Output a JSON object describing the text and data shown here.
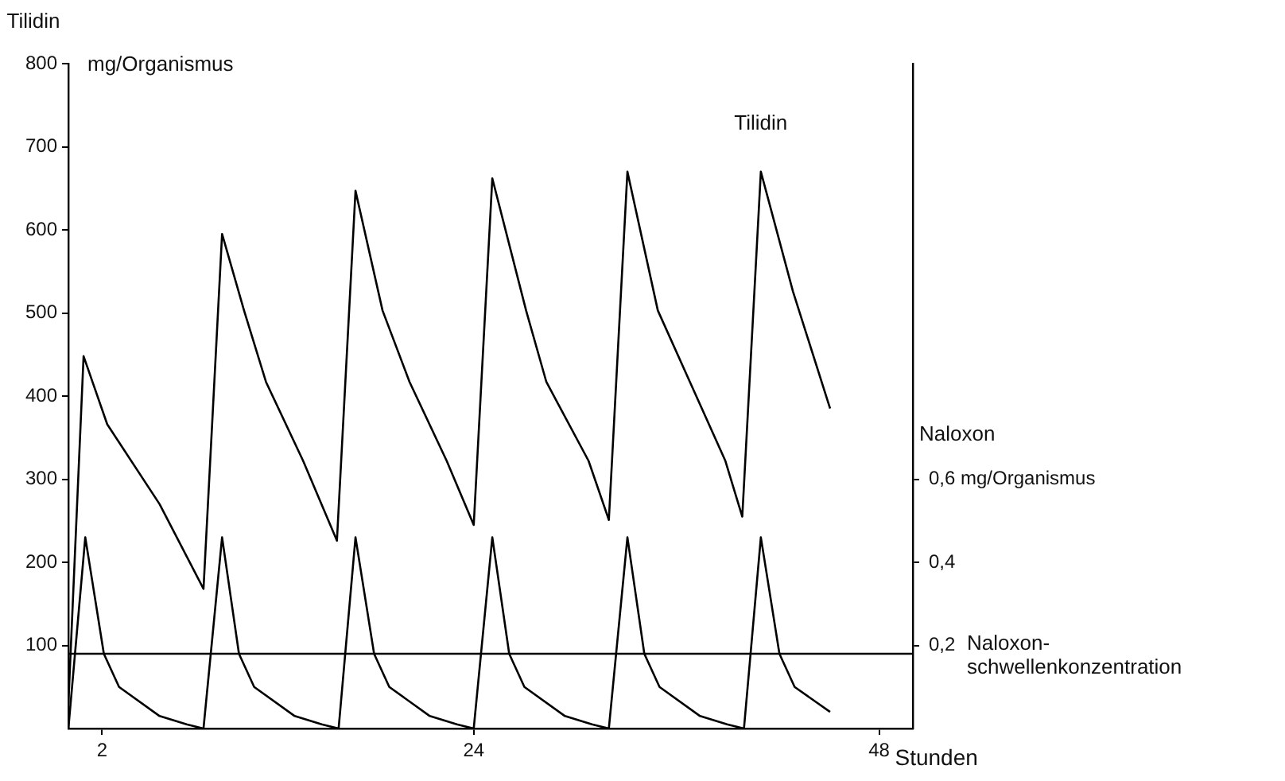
{
  "chart_data": {
    "type": "line",
    "ylabel": "Tilidin\nmg/Organismus",
    "y2label": "Naloxon",
    "xlabel": "Stunden",
    "xlim": [
      0,
      50
    ],
    "xticks": [
      2,
      24,
      48
    ],
    "ylim": [
      0,
      800
    ],
    "yticks": [
      100,
      200,
      300,
      400,
      500,
      600,
      700,
      800
    ],
    "y2lim": [
      0,
      1.6
    ],
    "y2ticks": [
      {
        "value": 0.2,
        "label": "0,2"
      },
      {
        "value": 0.4,
        "label": "0,4"
      },
      {
        "value": 0.6,
        "label": "0,6 mg/Organismus"
      }
    ],
    "grid": false,
    "legend": false,
    "marker": "none",
    "line_style": "solid",
    "series": [
      {
        "name": "Tilidin",
        "color": "#000000",
        "x": [
          0,
          0.9,
          2.3,
          5.4,
          8.0,
          9.1,
          10.4,
          11.7,
          13.9,
          15.9,
          17.0,
          18.6,
          20.2,
          22.4,
          24.0,
          25.1,
          27.1,
          28.3,
          30.8,
          32.0,
          33.1,
          34.9,
          36.8,
          38.9,
          39.9,
          41.0,
          42.9,
          45.1
        ],
        "values": [
          30,
          448,
          366,
          270,
          168,
          595,
          503,
          417,
          322,
          226,
          647,
          503,
          417,
          322,
          245,
          662,
          503,
          417,
          322,
          251,
          670,
          503,
          417,
          322,
          255,
          670,
          526,
          385
        ]
      },
      {
        "color": "#000000",
        "axis": "y2",
        "x": [
          0,
          1,
          2.1,
          3,
          5.4,
          7,
          8,
          9.1,
          10.1,
          11,
          13.4,
          15,
          16,
          17,
          18.1,
          19,
          21.4,
          23,
          24,
          25.1,
          26.1,
          27,
          29.4,
          31,
          32,
          33.1,
          34.1,
          35,
          37.4,
          39,
          40,
          41,
          42.1,
          43,
          45.1
        ],
        "values": [
          0,
          0.46,
          0.18,
          0.1,
          0.03,
          0.01,
          0,
          0.46,
          0.18,
          0.1,
          0.03,
          0.01,
          0,
          0.46,
          0.18,
          0.1,
          0.03,
          0.01,
          0,
          0.46,
          0.18,
          0.1,
          0.03,
          0.01,
          0,
          0.46,
          0.18,
          0.1,
          0.03,
          0.01,
          0,
          0.46,
          0.18,
          0.1,
          0.04
        ]
      }
    ],
    "ref_lines": [
      {
        "axis": "y2",
        "value": 0.18,
        "label": "Naloxon-\nschwellenkonzentration",
        "color": "#000000"
      }
    ]
  }
}
